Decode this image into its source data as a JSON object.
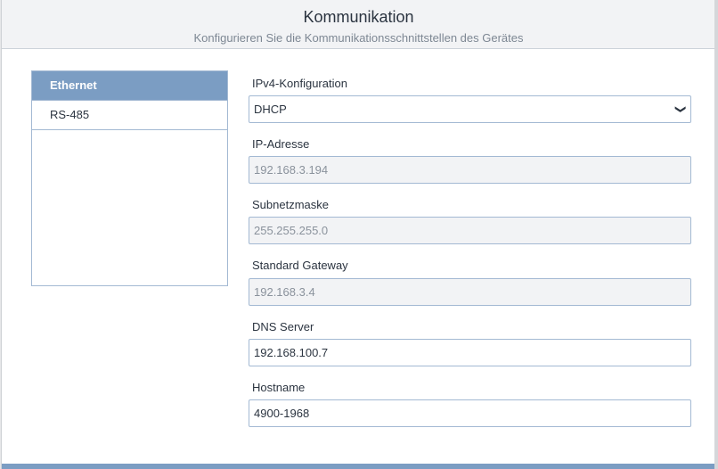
{
  "header": {
    "title": "Kommunikation",
    "subtitle": "Konfigurieren Sie die Kommunikationsschnittstellen des Gerätes"
  },
  "sidebar": {
    "items": [
      {
        "label": "Ethernet",
        "active": true
      },
      {
        "label": "RS-485",
        "active": false
      }
    ]
  },
  "form": {
    "ipv4": {
      "label": "IPv4-Konfiguration",
      "value": "DHCP"
    },
    "ip": {
      "label": "IP-Adresse",
      "value": "192.168.3.194"
    },
    "subnet": {
      "label": "Subnetzmaske",
      "value": "255.255.255.0"
    },
    "gateway": {
      "label": "Standard Gateway",
      "value": "192.168.3.4"
    },
    "dns": {
      "label": "DNS Server",
      "value": "192.168.100.7"
    },
    "hostname": {
      "label": "Hostname",
      "value": "4900-1968"
    }
  },
  "colors": {
    "accent": "#7b9dc3"
  }
}
